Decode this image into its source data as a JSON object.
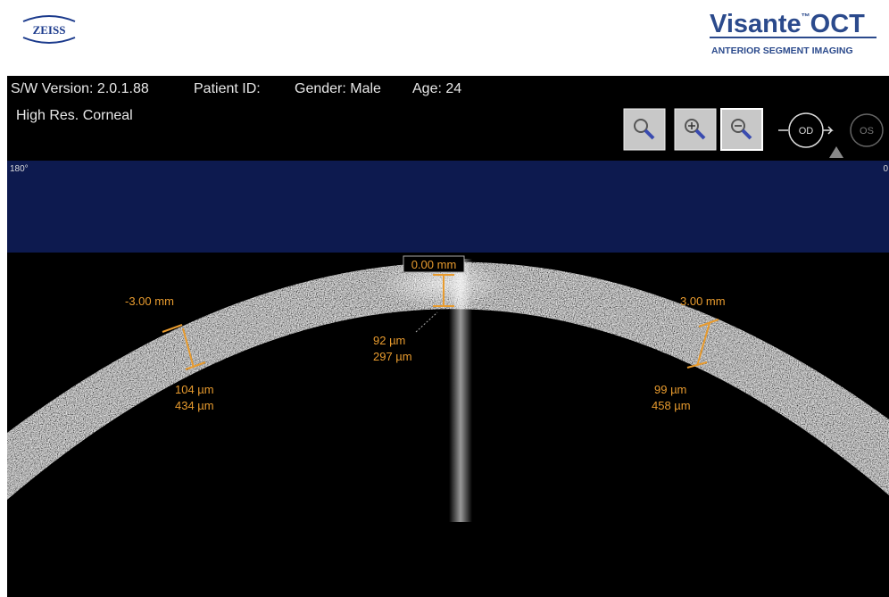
{
  "header": {
    "logo_left": "ZEISS",
    "logo_right": {
      "name": "Visante",
      "tm": "™",
      "product": "OCT",
      "subtitle": "ANTERIOR SEGMENT IMAGING"
    }
  },
  "info": {
    "version": "S/W Version: 2.0.1.88",
    "patient": "Patient ID:",
    "gender": "Gender: Male",
    "age": "Age: 24",
    "mode": "High Res. Corneal"
  },
  "eyes": {
    "od": "OD",
    "os": "OS"
  },
  "scan": {
    "left_angle": "180°",
    "right_angle": "0"
  },
  "measurements": [
    {
      "position": "-3.00 mm",
      "thickness": "104 µm",
      "depth": "434 µm"
    },
    {
      "position": "0.00 mm",
      "thickness": "92 µm",
      "depth": "297 µm"
    },
    {
      "position": "3.00 mm",
      "thickness": "99 µm",
      "depth": "458 µm"
    }
  ]
}
